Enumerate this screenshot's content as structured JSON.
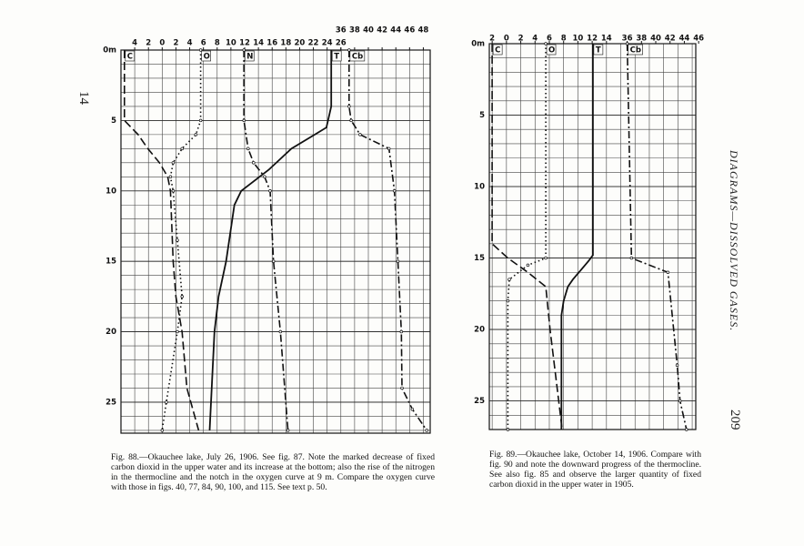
{
  "page": {
    "left_page_number": "14",
    "running_head": "DIAGRAMS—DISSOLVED GASES.",
    "right_page_number": "209"
  },
  "chart_data": [
    {
      "type": "line",
      "y_inverted": true,
      "grid": true,
      "caption": "Fig. 88.—Okauchee lake, July 26, 1906. See fig. 87. Note the marked decrease of fixed carbon dioxid in the upper water and its increase at the bottom; also the rise of the nitrogen in the thermocline and the notch in the oxygen curve at 9 m. Compare the oxygen curve with those in figs. 40, 77, 84, 90, 100, and 115. See text p. 50.",
      "xlim": [
        -6,
        39
      ],
      "x2lim": [
        4,
        49
      ],
      "ylim": [
        0,
        27.2
      ],
      "xticks": [
        {
          "value": -4,
          "label": "4"
        },
        {
          "value": -2,
          "label": "2"
        },
        0,
        2,
        4,
        6,
        8,
        10,
        12,
        14,
        16,
        18,
        20,
        22,
        24,
        26
      ],
      "x2ticks": [
        36,
        38,
        40,
        42,
        44,
        46,
        48
      ],
      "yticks": [
        {
          "value": 0,
          "label": "0m"
        },
        5,
        10,
        15,
        20,
        25
      ],
      "series": [
        {
          "name": "C",
          "color": "#111",
          "dash": "dashed",
          "x": [
            -5.5,
            -5.5,
            -3.5,
            -2.1,
            -0.4,
            0.8,
            1.2,
            1.6,
            2,
            2.9,
            3.6,
            5.3
          ],
          "y": [
            0,
            5,
            6,
            7,
            8,
            9,
            10,
            15,
            17.5,
            20,
            24,
            27
          ]
        },
        {
          "name": "O",
          "color": "#111",
          "dash": "dotted",
          "x": [
            5.6,
            5.6,
            4.9,
            2.9,
            1.6,
            1.2,
            1.6,
            2.2,
            2.9,
            2.2,
            0.6,
            0
          ],
          "y": [
            0,
            5,
            6,
            7,
            8,
            9,
            10,
            13.5,
            17.5,
            20,
            25,
            27
          ]
        },
        {
          "name": "N",
          "color": "#111",
          "dash": "dashdot",
          "x": [
            11.9,
            11.9,
            12.5,
            13.3,
            14.9,
            15.7,
            16.2,
            17.2,
            18.3
          ],
          "y": [
            0,
            5,
            7,
            8,
            9,
            10,
            15,
            20,
            27
          ]
        },
        {
          "name": "T",
          "color": "#111",
          "dash": "solid",
          "x": [
            24.6,
            24.6,
            23.9,
            22.2,
            18.8,
            15.5,
            11.5,
            10.5,
            9.3,
            8.2,
            7.6,
            6.9
          ],
          "y": [
            0,
            4,
            5.5,
            6,
            7,
            8.5,
            10,
            11,
            15,
            17.5,
            20,
            27
          ]
        },
        {
          "name": "Cb",
          "color": "#111",
          "dash": "dashdot",
          "axis": "x2",
          "x": [
            37.2,
            37.2,
            37.5,
            38.8,
            43,
            43.8,
            44.3,
            44.8,
            44.9,
            46.4,
            48.5
          ],
          "y": [
            0,
            4,
            5,
            6,
            7,
            10,
            15,
            20,
            24,
            25.5,
            27
          ]
        }
      ]
    },
    {
      "type": "line",
      "y_inverted": true,
      "grid": true,
      "caption": "Fig. 89.—Okauchee lake, October 14, 1906. Compare with fig. 90 and note the downward progress of the thermocline. See also fig. 85 and observe the larger quantity of fixed carbon dioxid in the upper water in 1905.",
      "xlim": [
        -2.4,
        26.5
      ],
      "x2lim": [
        16.7,
        45.6
      ],
      "ylim": [
        0,
        27
      ],
      "xticks": [
        {
          "value": -2,
          "label": "2"
        },
        0,
        2,
        4,
        6,
        8,
        10,
        12,
        14
      ],
      "x2ticks": [
        36,
        38,
        40,
        42,
        44,
        46
      ],
      "yticks": [
        {
          "value": 0,
          "label": "0m"
        },
        5,
        10,
        15,
        20,
        25
      ],
      "series": [
        {
          "name": "C",
          "color": "#111",
          "dash": "dashed",
          "x": [
            -2,
            -2,
            0.2,
            3,
            5.5,
            6.1,
            7.8
          ],
          "y": [
            0,
            14,
            15,
            16,
            17,
            20,
            27
          ]
        },
        {
          "name": "O",
          "color": "#111",
          "dash": "dotted",
          "x": [
            5.5,
            5.5,
            3,
            0.4,
            0.2,
            0.2
          ],
          "y": [
            0,
            15,
            15.5,
            16.5,
            18,
            27
          ]
        },
        {
          "name": "T",
          "color": "#111",
          "dash": "solid",
          "x": [
            12.1,
            12.1,
            11.5,
            9.3,
            8.6,
            8,
            7.7,
            7.7
          ],
          "y": [
            0,
            14.8,
            15.2,
            16.5,
            17,
            18,
            19,
            27
          ]
        },
        {
          "name": "Cb",
          "color": "#111",
          "dash": "dashdot",
          "axis": "x2",
          "x": [
            36,
            36.6,
            41.7,
            43,
            43.4,
            44.3
          ],
          "y": [
            0,
            15,
            16,
            22.5,
            25,
            27
          ]
        }
      ]
    }
  ]
}
